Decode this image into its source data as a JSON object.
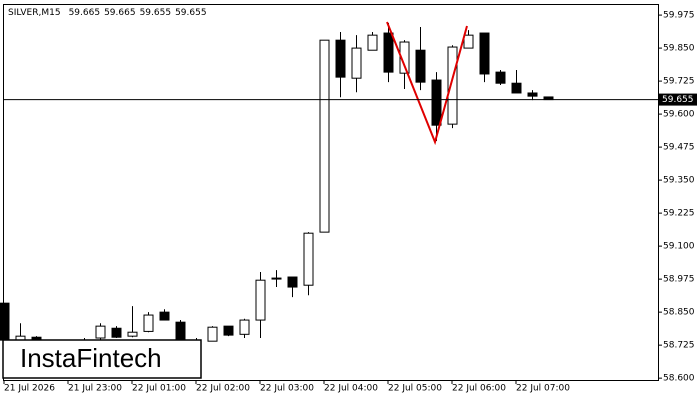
{
  "chart_data": {
    "type": "candlestick",
    "title": "SILVER,M15",
    "watermark": "InstaFintech",
    "categories": [
      "21 Jul 2026",
      null,
      null,
      null,
      "21 Jul 23:00",
      null,
      null,
      null,
      "22 Jul 01:00",
      null,
      null,
      null,
      "22 Jul 02:00",
      null,
      null,
      null,
      "22 Jul 03:00",
      null,
      null,
      null,
      "22 Jul 04:00",
      null,
      null,
      null,
      "22 Jul 05:00",
      null,
      null,
      null,
      "22 Jul 06:00",
      null,
      null,
      null,
      "22 Jul 07:00",
      null,
      null
    ],
    "open": [
      58.884,
      58.74,
      58.755,
      58.74,
      58.729,
      58.74,
      58.752,
      58.789,
      58.759,
      58.777,
      58.85,
      58.812,
      58.744,
      58.74,
      58.797,
      58.766,
      58.82,
      58.979,
      58.983,
      58.952,
      59.153,
      59.88,
      59.736,
      59.842,
      59.907,
      59.755,
      59.842,
      59.729,
      59.562,
      59.85,
      59.907,
      59.759,
      59.717,
      59.68,
      59.665
    ],
    "high": [
      58.884,
      58.808,
      58.759,
      58.744,
      58.744,
      58.752,
      58.808,
      58.797,
      58.873,
      58.85,
      58.861,
      58.82,
      58.752,
      58.797,
      58.797,
      58.825,
      59.002,
      59.009,
      58.983,
      59.153,
      59.88,
      59.911,
      59.899,
      59.911,
      59.945,
      59.88,
      59.93,
      59.759,
      59.861,
      59.918,
      59.907,
      59.767,
      59.767,
      59.691,
      59.665
    ],
    "low": [
      58.725,
      58.729,
      58.74,
      58.725,
      58.721,
      58.729,
      58.744,
      58.752,
      58.755,
      58.774,
      58.82,
      58.744,
      58.725,
      58.74,
      58.759,
      58.752,
      58.752,
      58.945,
      58.907,
      58.914,
      59.153,
      59.664,
      59.683,
      59.842,
      59.721,
      59.695,
      59.691,
      59.498,
      59.547,
      59.85,
      59.721,
      59.71,
      59.68,
      59.653,
      59.655
    ],
    "close": [
      58.744,
      58.759,
      58.74,
      58.729,
      58.74,
      58.744,
      58.797,
      58.755,
      58.774,
      58.839,
      58.82,
      58.744,
      58.74,
      58.793,
      58.763,
      58.82,
      58.971,
      58.979,
      58.945,
      59.149,
      59.88,
      59.74,
      59.85,
      59.899,
      59.759,
      59.873,
      59.721,
      59.558,
      59.854,
      59.899,
      59.752,
      59.717,
      59.68,
      59.668,
      59.655
    ],
    "last_price": 59.655,
    "ylim": [
      58.593,
      60.017
    ],
    "yticks": [
      59.975,
      {
        "value": 59.85,
        "label": "59.850"
      },
      59.725,
      {
        "value": 59.6,
        "label": "59.600"
      },
      59.475,
      {
        "value": 59.35,
        "label": "59.350"
      },
      59.225,
      {
        "value": 59.1,
        "label": "59.100"
      },
      58.975,
      {
        "value": 58.85,
        "label": "58.850"
      },
      58.725,
      {
        "value": 58.6,
        "label": "58.600"
      }
    ]
  }
}
